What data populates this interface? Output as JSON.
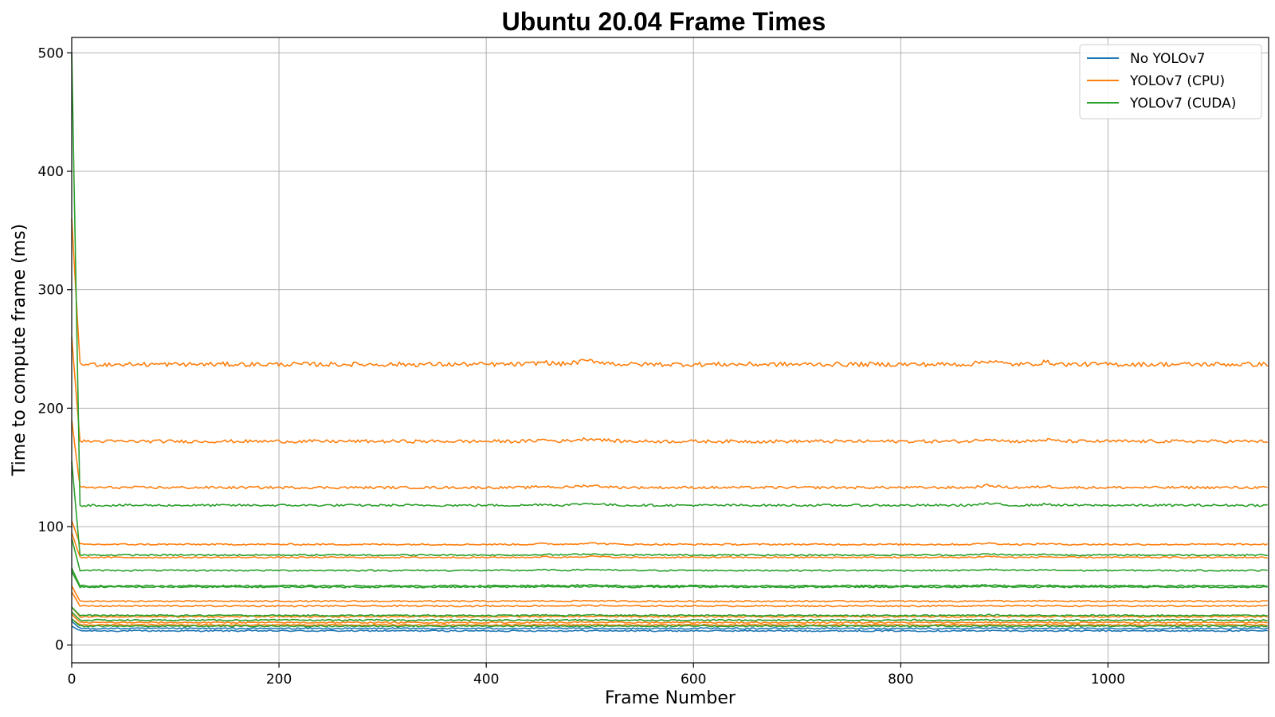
{
  "chart_data": {
    "type": "line",
    "title": "Ubuntu 20.04 Frame Times",
    "xlabel": "Frame Number",
    "ylabel": "Time to compute frame (ms)",
    "xlim": [
      0,
      1155
    ],
    "ylim": [
      -15,
      513
    ],
    "xticks": [
      0,
      200,
      400,
      600,
      800,
      1000
    ],
    "yticks": [
      0,
      100,
      200,
      300,
      400,
      500
    ],
    "grid": true,
    "legend_position": "top-right",
    "series": [
      {
        "name": "No YOLOv7",
        "color": "#1f77b4",
        "legend": true,
        "levels": [
          12,
          14
        ],
        "start": [
          16,
          20
        ]
      },
      {
        "name": "YOLOv7 (CPU)",
        "color": "#ff7f0e",
        "legend": true,
        "levels": [
          237,
          172,
          133,
          85,
          74,
          37,
          33,
          24,
          19,
          17
        ],
        "start": [
          360,
          260,
          190,
          105,
          95,
          50,
          45,
          32,
          26,
          22
        ]
      },
      {
        "name": "YOLOv7 (CUDA)",
        "color": "#2ca02c",
        "legend": true,
        "levels": [
          118,
          76,
          63,
          50,
          49,
          25,
          21,
          16
        ],
        "start": [
          500,
          155,
          90,
          65,
          62,
          32,
          28,
          22
        ]
      }
    ]
  }
}
